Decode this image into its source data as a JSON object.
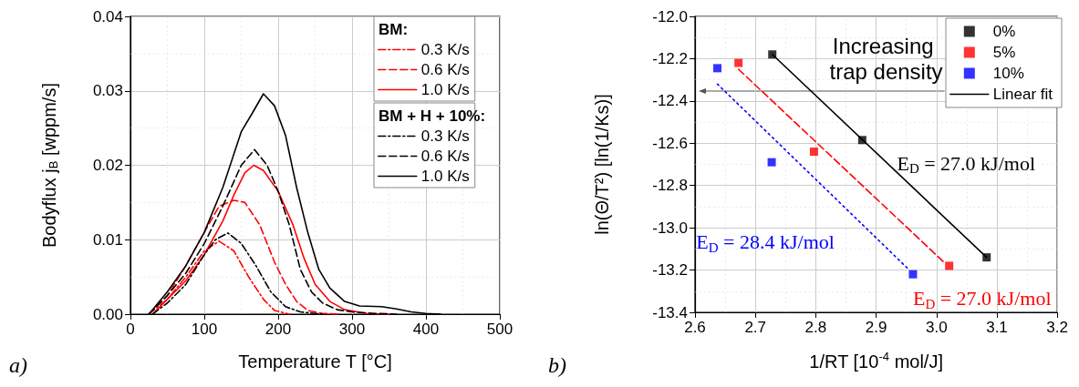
{
  "chart_data": [
    {
      "type": "line",
      "xlabel": "Temperature T [°C]",
      "ylabel": "Bodyflux j$_{B}$ [wppm/s]",
      "xlim": [
        0,
        500
      ],
      "xticks": [
        0,
        100,
        200,
        300,
        400,
        500
      ],
      "ylim": [
        0,
        0.04
      ],
      "yticks": [
        {
          "value": 0,
          "label": "0.00"
        },
        0.01,
        0.02,
        0.03,
        0.04
      ],
      "grid": true,
      "legend": "top right",
      "marker": "none",
      "annotations": [
        "BM:",
        "BM + H + 10%:",
        "a)"
      ],
      "series": [
        {
          "name": "0.3 K/s",
          "color": "#ff0000",
          "line_style": "dashdot",
          "x": [
            25,
            50,
            75,
            100,
            120,
            140,
            160,
            180,
            195,
            215
          ],
          "values": [
            0,
            0.002,
            0.005,
            0.0085,
            0.0098,
            0.0085,
            0.005,
            0.002,
            0.0005,
            0
          ]
        },
        {
          "name": "0.6 K/s",
          "color": "#ff0000",
          "line_style": "dashed",
          "x": [
            25,
            50,
            75,
            100,
            120,
            140,
            155,
            175,
            195,
            210,
            225,
            240,
            260,
            280
          ],
          "values": [
            0,
            0.0025,
            0.0065,
            0.011,
            0.0145,
            0.0153,
            0.015,
            0.012,
            0.007,
            0.004,
            0.0017,
            0.0005,
            0.0001,
            0
          ]
        },
        {
          "name": "1.0 K/s",
          "color": "#ff0000",
          "line_style": "solid",
          "x": [
            30,
            50,
            75,
            100,
            125,
            140,
            155,
            167,
            180,
            200,
            220,
            235,
            250,
            270,
            290,
            320,
            350
          ],
          "values": [
            0,
            0.002,
            0.0045,
            0.008,
            0.0125,
            0.016,
            0.019,
            0.02,
            0.0193,
            0.0165,
            0.012,
            0.0075,
            0.004,
            0.0017,
            0.0006,
            0.0001,
            0
          ]
        },
        {
          "name": "0.3 K/s",
          "color": "#000000",
          "line_style": "dashdot",
          "x": [
            30,
            50,
            75,
            100,
            115,
            132,
            150,
            170,
            190,
            210,
            230,
            260
          ],
          "values": [
            0,
            0.0015,
            0.004,
            0.008,
            0.01,
            0.0109,
            0.0095,
            0.0065,
            0.003,
            0.001,
            0.0003,
            0
          ]
        },
        {
          "name": "0.6 K/s",
          "color": "#000000",
          "line_style": "dashed",
          "x": [
            25,
            50,
            75,
            100,
            125,
            150,
            168,
            185,
            200,
            215,
            230,
            245,
            260,
            280,
            300,
            330,
            360
          ],
          "values": [
            0,
            0.0025,
            0.0055,
            0.0095,
            0.0145,
            0.02,
            0.0221,
            0.02,
            0.0165,
            0.012,
            0.006,
            0.003,
            0.0015,
            0.0006,
            0.0003,
            0.0001,
            0
          ]
        },
        {
          "name": "1.0 K/s",
          "color": "#000000",
          "line_style": "solid",
          "x": [
            25,
            50,
            75,
            100,
            125,
            150,
            165,
            180,
            195,
            210,
            225,
            240,
            255,
            270,
            290,
            310,
            340,
            360,
            380,
            400,
            420
          ],
          "values": [
            0,
            0.003,
            0.0065,
            0.011,
            0.017,
            0.0245,
            0.027,
            0.0296,
            0.028,
            0.024,
            0.017,
            0.011,
            0.006,
            0.0035,
            0.0017,
            0.0011,
            0.001,
            0.0007,
            0.0003,
            0.0001,
            0
          ]
        }
      ]
    },
    {
      "type": "scatter",
      "xlabel": "1/RT [10$^{-4}$ mol/J]",
      "ylabel": "ln(Θ/T²) [ln(1/Ks)]",
      "xlim": [
        2.6,
        3.2
      ],
      "xticks": [
        2.6,
        2.7,
        2.8,
        2.9,
        {
          "value": 3,
          "label": "3.0"
        },
        3.1,
        3.2
      ],
      "ylim": [
        -13.4,
        -12.0
      ],
      "yticks": [
        -13.4,
        -13.2,
        {
          "value": -13,
          "label": "-13.0"
        },
        -12.8,
        -12.6,
        -12.4,
        -12.2,
        {
          "value": -12,
          "label": "-12.0"
        }
      ],
      "grid": true,
      "legend": "top right",
      "marker": "square",
      "annotations": [
        "Increasing trap density",
        "E$_{D}$ = 27.0 kJ/mol",
        "E$_{D}$ = 27.0 kJ/mol",
        "E$_{D}$ = 28.4 kJ/mol",
        "b)"
      ],
      "series": [
        {
          "name": "0%",
          "color": "#000000",
          "x": [
            2.728,
            2.877,
            3.083
          ],
          "values": [
            -12.18,
            -12.585,
            -13.14
          ]
        },
        {
          "name": "5%",
          "color": "#ff0000",
          "x": [
            2.672,
            2.797,
            3.021
          ],
          "values": [
            -12.22,
            -12.64,
            -13.18
          ]
        },
        {
          "name": "10%",
          "color": "#0000ff",
          "x": [
            2.637,
            2.727,
            2.961
          ],
          "values": [
            -12.245,
            -12.69,
            -13.22
          ]
        },
        {
          "name": "Linear fit",
          "type": "line",
          "marker": "none",
          "color": "#000000",
          "line_style": "solid",
          "x": [
            2.728,
            3.083
          ],
          "values": [
            -12.18,
            -13.14
          ]
        },
        {
          "type": "line",
          "marker": "none",
          "color": "#ff0000",
          "line_style": "dashed",
          "x": [
            2.672,
            3.015
          ],
          "values": [
            -12.25,
            -13.17
          ]
        },
        {
          "type": "line",
          "marker": "none",
          "color": "#0000ff",
          "line_style": "dotted",
          "x": [
            2.637,
            2.955
          ],
          "values": [
            -12.32,
            -13.2
          ]
        }
      ]
    }
  ]
}
